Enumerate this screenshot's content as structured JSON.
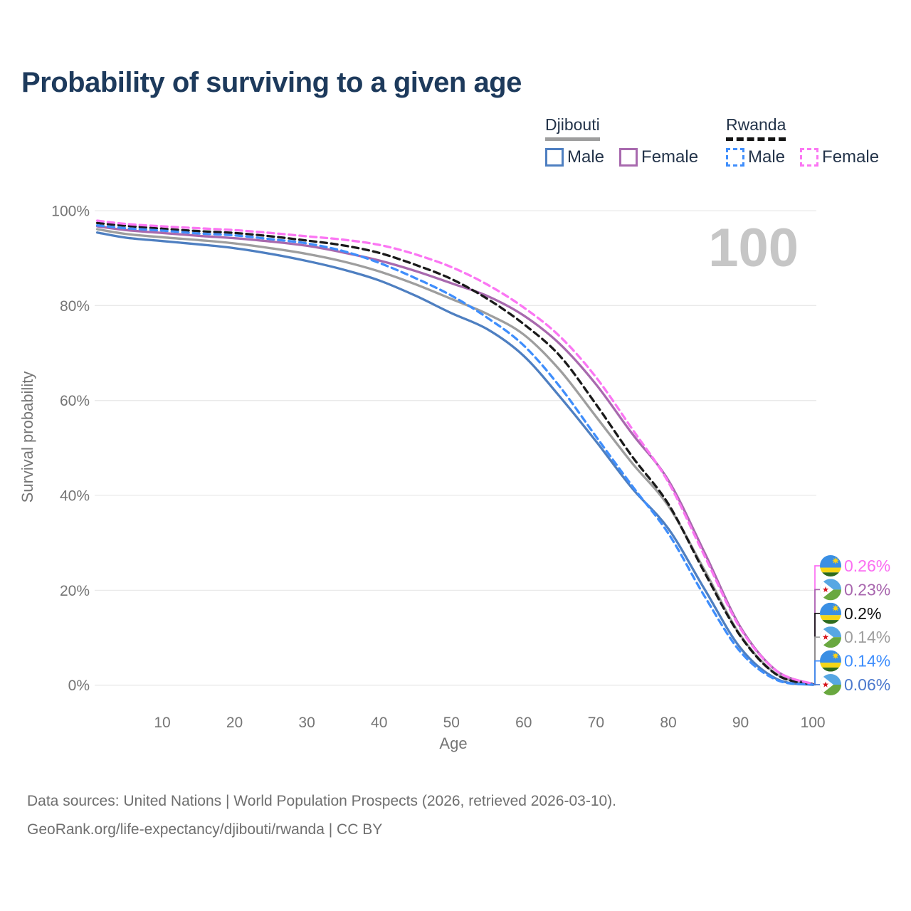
{
  "title": "Probability of surviving to a given age",
  "legend": {
    "djibouti": {
      "label": "Djibouti",
      "male_label": "Male",
      "female_label": "Female"
    },
    "rwanda": {
      "label": "Rwanda",
      "male_label": "Male",
      "female_label": "Female"
    }
  },
  "watermark_age_label": "100",
  "chart_data": {
    "type": "line",
    "title": "Probability of surviving to a given age",
    "xlabel": "Age",
    "ylabel": "Survival probability",
    "xlim": [
      0,
      100
    ],
    "ylim": [
      0,
      100
    ],
    "x_ticks": [
      10,
      20,
      30,
      40,
      50,
      60,
      70,
      80,
      90,
      100
    ],
    "y_ticks": [
      0,
      20,
      40,
      60,
      80,
      100
    ],
    "y_tick_suffix": "%",
    "grid": "horizontal",
    "legend_position": "top-right",
    "hover_age_indicator": "100",
    "x": [
      1,
      5,
      10,
      15,
      20,
      25,
      30,
      35,
      40,
      45,
      50,
      55,
      60,
      65,
      70,
      75,
      80,
      85,
      90,
      95,
      100
    ],
    "series": [
      {
        "id": "djibouti_male",
        "name": "Djibouti Male",
        "country": "Djibouti",
        "sex": "Male",
        "color": "#4e7fc1",
        "dash": "solid",
        "values": [
          95.4,
          94.3,
          93.6,
          92.9,
          92.1,
          90.9,
          89.4,
          87.6,
          85.3,
          82.1,
          78.4,
          75.0,
          69.4,
          60.8,
          51.4,
          41.5,
          33.0,
          20.3,
          7.8,
          1.3,
          0.06
        ],
        "end_label": "0.06%"
      },
      {
        "id": "djibouti_female",
        "name": "Djibouti Female",
        "country": "Djibouti",
        "sex": "Female",
        "color": "#a869ae",
        "dash": "solid",
        "values": [
          96.7,
          95.9,
          95.3,
          94.7,
          94.2,
          93.5,
          92.6,
          91.2,
          89.5,
          87.3,
          84.7,
          82.0,
          77.9,
          71.9,
          63.4,
          53.0,
          43.2,
          28.0,
          12.2,
          3.0,
          0.23
        ],
        "end_label": "0.23%"
      },
      {
        "id": "djibouti_all",
        "name": "Djibouti (both sexes)",
        "country": "Djibouti",
        "sex": "Both",
        "color": "#9e9e9e",
        "dash": "solid",
        "values": [
          96.1,
          95.1,
          94.4,
          93.8,
          93.1,
          92.1,
          90.9,
          89.3,
          87.2,
          84.5,
          81.4,
          78.2,
          73.9,
          66.4,
          56.6,
          46.8,
          37.8,
          24.3,
          10.5,
          2.3,
          0.14
        ],
        "end_label": "0.14%"
      },
      {
        "id": "rwanda_male",
        "name": "Rwanda Male",
        "country": "Rwanda",
        "sex": "Male",
        "color": "#3f8efc",
        "dash": "dashed",
        "values": [
          96.9,
          96.3,
          95.8,
          95.2,
          94.8,
          94.0,
          93.1,
          91.5,
          89.0,
          85.8,
          82.1,
          77.4,
          71.6,
          62.9,
          52.4,
          42.0,
          32.0,
          18.8,
          7.0,
          1.1,
          0.14
        ],
        "end_label": "0.14%"
      },
      {
        "id": "rwanda_female",
        "name": "Rwanda Female",
        "country": "Rwanda",
        "sex": "Female",
        "color": "#fb76f3",
        "dash": "dashed",
        "values": [
          97.9,
          97.2,
          96.7,
          96.3,
          95.9,
          95.3,
          94.6,
          93.9,
          92.8,
          90.8,
          88.1,
          84.4,
          79.6,
          73.5,
          64.9,
          54.0,
          42.8,
          27.3,
          11.9,
          3.0,
          0.26
        ],
        "end_label": "0.26%"
      },
      {
        "id": "rwanda_all",
        "name": "Rwanda (both sexes)",
        "country": "Rwanda",
        "sex": "Both",
        "color": "#1a1a1a",
        "dash": "dashed",
        "values": [
          97.4,
          96.8,
          96.2,
          95.7,
          95.3,
          94.6,
          93.7,
          92.7,
          91.1,
          88.6,
          85.6,
          81.4,
          76.1,
          69.4,
          59.2,
          48.2,
          38.2,
          23.8,
          10.3,
          2.2,
          0.2
        ],
        "end_label": "0.2%"
      }
    ],
    "draw_order": [
      "djibouti_all",
      "djibouti_male",
      "djibouti_female",
      "rwanda_all",
      "rwanda_male",
      "rwanda_female"
    ],
    "end_labels": [
      {
        "series": "rwanda_female",
        "flag": "rwanda",
        "text": "0.26%",
        "color": "#fb6ef2"
      },
      {
        "series": "djibouti_female",
        "flag": "djibouti",
        "text": "0.23%",
        "color": "#a866ae"
      },
      {
        "series": "rwanda_all",
        "flag": "rwanda",
        "text": "0.2%",
        "color": "#111111"
      },
      {
        "series": "djibouti_all",
        "flag": "djibouti",
        "text": "0.14%",
        "color": "#9e9e9e"
      },
      {
        "series": "rwanda_male",
        "flag": "rwanda",
        "text": "0.14%",
        "color": "#3f8efc"
      },
      {
        "series": "djibouti_male",
        "flag": "djibouti",
        "text": "0.06%",
        "color": "#4c79cd"
      }
    ]
  },
  "footer": {
    "line1": "Data sources: United Nations | World Population Prospects (2026, retrieved 2026-03-10).",
    "line2": "GeoRank.org/life-expectancy/djibouti/rwanda | CC BY"
  }
}
